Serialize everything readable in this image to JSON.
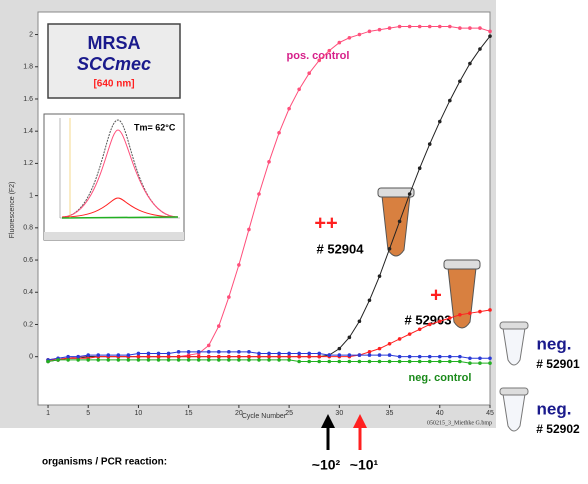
{
  "chart_data": {
    "type": "line",
    "x_label": "Cycle Number",
    "y_label": "Fluorescence (F2)",
    "xlim": [
      0,
      45
    ],
    "xticks": [
      1,
      5,
      10,
      15,
      20,
      25,
      30,
      35,
      40,
      45
    ],
    "ylim": [
      -0.3,
      2.14
    ],
    "yticks": [
      0,
      0.2,
      0.4,
      0.6,
      0.8,
      1,
      1.2,
      1.4,
      1.6,
      1.8,
      2
    ],
    "x": [
      1,
      2,
      3,
      4,
      5,
      6,
      7,
      8,
      9,
      10,
      11,
      12,
      13,
      14,
      15,
      16,
      17,
      18,
      19,
      20,
      21,
      22,
      23,
      24,
      25,
      26,
      27,
      28,
      29,
      30,
      31,
      32,
      33,
      34,
      35,
      36,
      37,
      38,
      39,
      40,
      41,
      42,
      43,
      44,
      45
    ],
    "series": [
      {
        "name": "pos. control",
        "color": "#ff4f7b",
        "values": [
          -0.02,
          -0.01,
          -0.01,
          0,
          0,
          0,
          0,
          0,
          0,
          0,
          0,
          0,
          0,
          0,
          0.01,
          0.02,
          0.07,
          0.19,
          0.37,
          0.57,
          0.79,
          1.01,
          1.21,
          1.39,
          1.54,
          1.66,
          1.76,
          1.84,
          1.9,
          1.95,
          1.98,
          2.0,
          2.02,
          2.03,
          2.04,
          2.05,
          2.05,
          2.05,
          2.05,
          2.05,
          2.05,
          2.04,
          2.04,
          2.04,
          2.02
        ]
      },
      {
        "name": "# 52904",
        "color": "#222222",
        "values": [
          -0.03,
          -0.02,
          -0.01,
          -0.01,
          0,
          0,
          0,
          0,
          0,
          0,
          0,
          0,
          0,
          0,
          0,
          0,
          0,
          0,
          0,
          0,
          0,
          0,
          0,
          0,
          0,
          0,
          0,
          0,
          0.01,
          0.05,
          0.12,
          0.22,
          0.35,
          0.5,
          0.67,
          0.84,
          1.01,
          1.17,
          1.32,
          1.46,
          1.59,
          1.71,
          1.82,
          1.91,
          1.99
        ]
      },
      {
        "name": "# 52903",
        "color": "#ff2020",
        "values": [
          -0.02,
          -0.02,
          -0.01,
          -0.01,
          -0.01,
          0,
          0,
          0,
          0,
          0,
          0,
          0,
          0,
          0,
          0,
          0,
          0,
          0,
          0,
          0,
          0,
          0,
          0,
          0,
          0,
          0,
          0,
          0,
          0,
          0,
          0,
          0.01,
          0.03,
          0.05,
          0.08,
          0.11,
          0.14,
          0.17,
          0.2,
          0.22,
          0.24,
          0.26,
          0.27,
          0.28,
          0.29
        ]
      },
      {
        "name": "# 52901",
        "color": "#2a3ad8",
        "values": [
          -0.02,
          -0.01,
          0,
          0,
          0.01,
          0.01,
          0.01,
          0.01,
          0.01,
          0.02,
          0.02,
          0.02,
          0.02,
          0.03,
          0.03,
          0.03,
          0.03,
          0.03,
          0.03,
          0.03,
          0.03,
          0.02,
          0.02,
          0.02,
          0.02,
          0.02,
          0.02,
          0.02,
          0.01,
          0.01,
          0.01,
          0.01,
          0.01,
          0.01,
          0.01,
          0,
          0,
          0,
          0,
          0,
          0,
          0,
          -0.01,
          -0.01,
          -0.01
        ]
      },
      {
        "name": "neg. control",
        "color": "#22b022",
        "values": [
          -0.03,
          -0.02,
          -0.02,
          -0.02,
          -0.02,
          -0.02,
          -0.02,
          -0.02,
          -0.02,
          -0.02,
          -0.02,
          -0.02,
          -0.02,
          -0.02,
          -0.02,
          -0.02,
          -0.02,
          -0.02,
          -0.02,
          -0.02,
          -0.02,
          -0.02,
          -0.02,
          -0.02,
          -0.02,
          -0.03,
          -0.03,
          -0.03,
          -0.03,
          -0.03,
          -0.03,
          -0.03,
          -0.03,
          -0.03,
          -0.03,
          -0.03,
          -0.03,
          -0.03,
          -0.03,
          -0.03,
          -0.03,
          -0.03,
          -0.04,
          -0.04,
          -0.04
        ]
      }
    ],
    "annotations": [
      "MRSA",
      "SCCmec",
      "[640 nm]",
      "pos. control",
      "neg. control",
      "++",
      "# 52904",
      "+",
      "# 52903",
      "neg.",
      "# 52901",
      "neg.",
      "# 52902",
      "~10²",
      "~10¹",
      "organisms / PCR reaction:",
      "050215_3_Miethke G.bmp",
      "Tm= 62°C"
    ]
  }
}
